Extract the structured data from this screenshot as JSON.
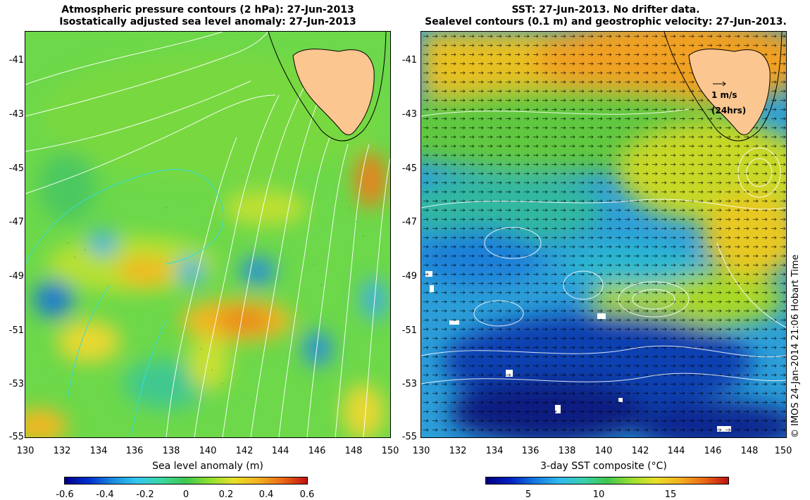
{
  "left": {
    "title_line1": "Atmospheric pressure contours (2 hPa): 27-Jun-2013",
    "title_line2": "Isostatically adjusted sea level anomaly: 27-Jun-2013",
    "colorbar_label": "Sea level anomaly (m)",
    "colorbar_ticks": [
      "-0.6",
      "-0.4",
      "-0.2",
      "0",
      "0.2",
      "0.4",
      "0.6"
    ]
  },
  "right": {
    "title_line1": "SST: 27-Jun-2013. No drifter data.",
    "title_line2": "Sealevel contours (0.1 m) and geostrophic velocity: 27-Jun-2013.",
    "colorbar_label": "3-day SST composite (°C)",
    "colorbar_ticks": [
      "5",
      "10",
      "15"
    ],
    "scale_label_1": "1 m/s",
    "scale_label_2": "(24hrs)"
  },
  "lat_ticks": [
    "-41",
    "-43",
    "-45",
    "-47",
    "-49",
    "-51",
    "-53",
    "-55"
  ],
  "lon_ticks": [
    "130",
    "132",
    "134",
    "136",
    "138",
    "140",
    "142",
    "144",
    "146",
    "148",
    "150"
  ],
  "credit": "© IMOS 24-Jan-2014 21:06 Hobart Time",
  "colors": {
    "land": "#fbc690",
    "contour": "#ffffff",
    "cyan_contour": "#33dddd",
    "depth_contour": "#000000"
  }
}
